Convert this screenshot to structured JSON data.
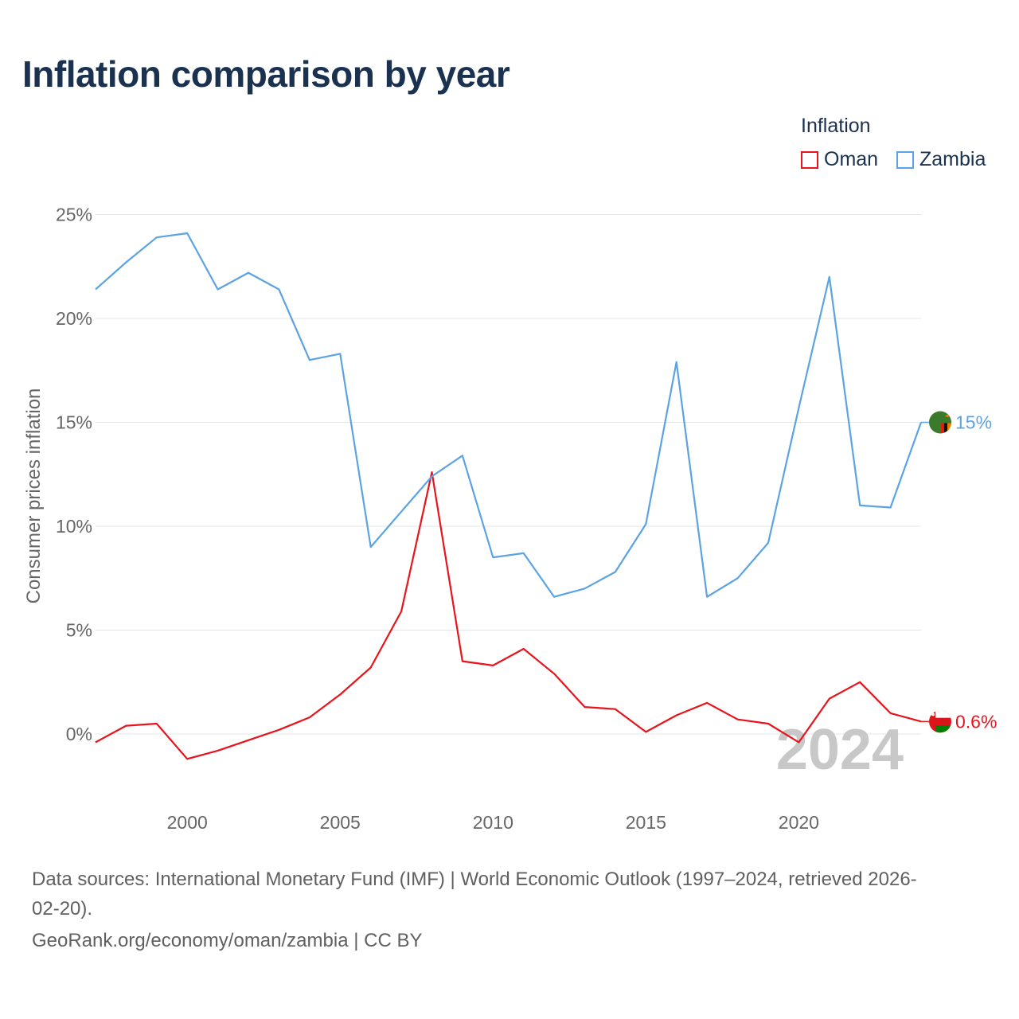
{
  "title": "Inflation comparison by year",
  "legend": {
    "title": "Inflation",
    "items": [
      {
        "label": "Oman",
        "color": "#e8141c"
      },
      {
        "label": "Zambia",
        "color": "#5ba3e3"
      }
    ]
  },
  "watermark_year": "2024",
  "footer": {
    "line1": "Data sources: International Monetary Fund (IMF) | World Economic Outlook (1997–2024, retrieved 2026-",
    "line2": "02-20).",
    "line3": "GeoRank.org/economy/oman/zambia | CC BY"
  },
  "chart_data": {
    "type": "line",
    "title": "Inflation comparison by year",
    "xlabel": "",
    "ylabel": "Consumer prices inflation",
    "xlim": [
      1997,
      2024
    ],
    "ylim": [
      -2.5,
      25
    ],
    "x_ticks": [
      2000,
      2005,
      2010,
      2015,
      2020
    ],
    "y_ticks": [
      0,
      5,
      10,
      15,
      20,
      25
    ],
    "y_tick_labels": [
      "0%",
      "5%",
      "10%",
      "15%",
      "20%",
      "25%"
    ],
    "grid": true,
    "legend_position": "top-right",
    "x": [
      1997,
      1998,
      1999,
      2000,
      2001,
      2002,
      2003,
      2004,
      2005,
      2006,
      2007,
      2008,
      2009,
      2010,
      2011,
      2012,
      2013,
      2014,
      2015,
      2016,
      2017,
      2018,
      2019,
      2020,
      2021,
      2022,
      2023,
      2024
    ],
    "series": [
      {
        "name": "Oman",
        "color": "#e8141c",
        "end_label": "0.6%",
        "values": [
          -0.4,
          0.4,
          0.5,
          -1.2,
          -0.8,
          -0.3,
          0.2,
          0.8,
          1.9,
          3.2,
          5.9,
          12.6,
          3.5,
          3.3,
          4.1,
          2.9,
          1.3,
          1.2,
          0.1,
          0.9,
          1.5,
          0.7,
          0.5,
          -0.4,
          1.7,
          2.5,
          1.0,
          0.6
        ]
      },
      {
        "name": "Zambia",
        "color": "#5ba3e3",
        "end_label": "15%",
        "values": [
          21.4,
          22.7,
          23.9,
          24.1,
          21.4,
          22.2,
          21.4,
          18.0,
          18.3,
          9.0,
          10.7,
          12.4,
          13.4,
          8.5,
          8.7,
          6.6,
          7.0,
          7.8,
          10.1,
          17.9,
          6.6,
          7.5,
          9.2,
          15.7,
          22.0,
          11.0,
          10.9,
          15.0
        ]
      }
    ]
  }
}
